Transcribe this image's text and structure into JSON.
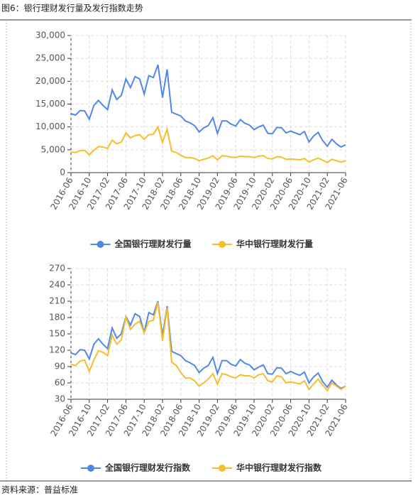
{
  "title": "图6：银行理财发行量及发行指数走势",
  "source": "资料来源：普益标准",
  "chart_data": [
    {
      "type": "line",
      "grid": true,
      "legend": "bottom",
      "categories": [
        "2016-06",
        null,
        null,
        null,
        "2016-10",
        null,
        null,
        null,
        "2017-02",
        null,
        null,
        null,
        "2017-06",
        null,
        null,
        null,
        "2017-10",
        null,
        null,
        null,
        "2018-02",
        null,
        null,
        null,
        "2018-06",
        null,
        null,
        null,
        "2018-10",
        null,
        null,
        null,
        "2019-02",
        null,
        null,
        null,
        "2019-06",
        null,
        null,
        null,
        "2019-10",
        null,
        null,
        null,
        "2020-02",
        null,
        null,
        null,
        "2020-06",
        null,
        null,
        null,
        "2020-10",
        null,
        null,
        null,
        "2021-02",
        null,
        null,
        null,
        "2021-06"
      ],
      "ylim": [
        0,
        30000
      ],
      "yticks": [
        0,
        {
          "value": 5000,
          "label": "5,000"
        },
        {
          "value": 10000,
          "label": "10,000"
        },
        {
          "value": 15000,
          "label": "15,000"
        },
        {
          "value": 20000,
          "label": "20,000"
        },
        {
          "value": 25000,
          "label": "25,000"
        },
        {
          "value": 30000,
          "label": "30,000"
        }
      ],
      "series": [
        {
          "name": "全国银行理财发行量",
          "color": "#5088e8",
          "values": [
            12900,
            12600,
            13600,
            13500,
            11700,
            14700,
            15800,
            14700,
            13800,
            18100,
            16000,
            16900,
            20500,
            18600,
            21000,
            20500,
            17200,
            21200,
            20800,
            23600,
            16400,
            22600,
            13200,
            12800,
            12400,
            11300,
            10900,
            10300,
            8900,
            9800,
            10300,
            12000,
            8600,
            11300,
            11300,
            10600,
            10200,
            11600,
            10800,
            10400,
            9400,
            10000,
            10400,
            8600,
            8500,
            9900,
            9800,
            8700,
            9100,
            8700,
            8300,
            9000,
            6700,
            8000,
            8800,
            7000,
            5800,
            7300,
            6300,
            5600,
            6100
          ]
        },
        {
          "name": "华中银行理财发行量",
          "color": "#f7bd2b",
          "values": [
            4500,
            4400,
            4800,
            4900,
            3900,
            4900,
            5700,
            5600,
            5300,
            7100,
            6300,
            6700,
            8700,
            7600,
            8100,
            8300,
            7300,
            8300,
            8400,
            10000,
            6600,
            9500,
            4700,
            4400,
            3800,
            3300,
            3300,
            3100,
            2600,
            2900,
            3200,
            3700,
            2800,
            3700,
            3600,
            3400,
            3300,
            3600,
            3500,
            3500,
            3300,
            3600,
            3700,
            3100,
            3000,
            3500,
            3400,
            2900,
            3000,
            2900,
            2800,
            3100,
            2300,
            2800,
            3200,
            2700,
            2200,
            2900,
            2600,
            2300,
            2600
          ]
        }
      ]
    },
    {
      "type": "line",
      "grid": true,
      "legend": "bottom",
      "categories": [
        "2016-06",
        null,
        null,
        null,
        "2016-10",
        null,
        null,
        null,
        "2017-02",
        null,
        null,
        null,
        "2017-06",
        null,
        null,
        null,
        "2017-10",
        null,
        null,
        null,
        "2018-02",
        null,
        null,
        null,
        "2018-06",
        null,
        null,
        null,
        "2018-10",
        null,
        null,
        null,
        "2019-02",
        null,
        null,
        null,
        "2019-06",
        null,
        null,
        null,
        "2019-10",
        null,
        null,
        null,
        "2020-02",
        null,
        null,
        null,
        "2020-06",
        null,
        null,
        null,
        "2020-10",
        null,
        null,
        null,
        "2021-02",
        null,
        null,
        null,
        "2021-06"
      ],
      "ylim": [
        30,
        270
      ],
      "yticks": [
        30,
        60,
        90,
        120,
        150,
        180,
        210,
        240,
        270
      ],
      "series": [
        {
          "name": "全国银行理财发行指数",
          "color": "#5088e8",
          "values": [
            115,
            112,
            121,
            120,
            104,
            131,
            141,
            131,
            123,
            161,
            142,
            150,
            182,
            166,
            187,
            182,
            153,
            189,
            185,
            210,
            146,
            201,
            118,
            114,
            110,
            101,
            97,
            92,
            79,
            87,
            92,
            107,
            77,
            101,
            101,
            94,
            91,
            103,
            96,
            93,
            84,
            89,
            93,
            77,
            76,
            88,
            87,
            77,
            81,
            77,
            74,
            80,
            60,
            71,
            78,
            62,
            52,
            65,
            56,
            50,
            54
          ]
        },
        {
          "name": "华中银行理财发行指数",
          "color": "#f7bd2b",
          "values": [
            94,
            92,
            100,
            102,
            81,
            102,
            119,
            116,
            110,
            148,
            131,
            139,
            181,
            158,
            168,
            173,
            152,
            173,
            175,
            208,
            137,
            198,
            98,
            92,
            79,
            69,
            69,
            64,
            54,
            60,
            67,
            77,
            58,
            77,
            75,
            71,
            69,
            75,
            73,
            73,
            69,
            75,
            77,
            64,
            62,
            73,
            71,
            60,
            62,
            60,
            58,
            64,
            48,
            58,
            67,
            56,
            46,
            60,
            54,
            48,
            54
          ]
        }
      ]
    }
  ]
}
